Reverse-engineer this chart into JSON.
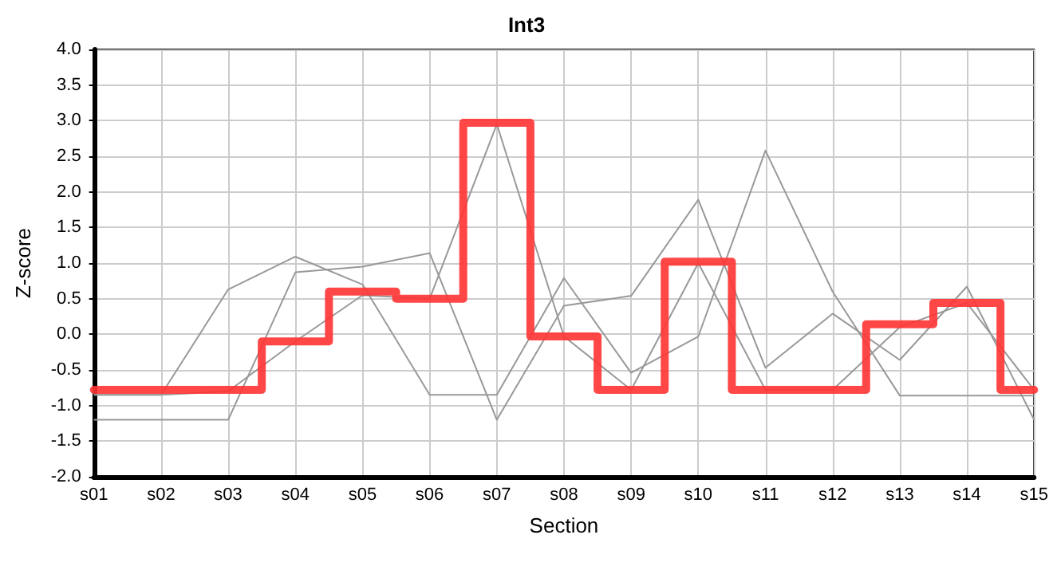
{
  "chart_data": {
    "type": "line",
    "title": "Int3",
    "xlabel": "Section",
    "ylabel": "Z-score",
    "categories": [
      "s01",
      "s02",
      "s03",
      "s04",
      "s05",
      "s06",
      "s07",
      "s08",
      "s09",
      "s10",
      "s11",
      "s12",
      "s13",
      "s14",
      "s15"
    ],
    "series": [
      {
        "color": "#999999",
        "values": [
          -1.2,
          -1.2,
          -1.2,
          0.87,
          0.95,
          1.14,
          -1.2,
          0.4,
          0.54,
          1.89,
          -0.47,
          0.29,
          -0.36,
          0.67,
          -1.2
        ]
      },
      {
        "color": "#999999",
        "values": [
          -0.85,
          -0.85,
          -0.8,
          -0.1,
          0.55,
          0.5,
          2.95,
          -0.03,
          -0.78,
          1.0,
          -0.78,
          -0.78,
          0.1,
          0.44,
          -0.78
        ]
      },
      {
        "color": "#999999",
        "values": [
          -0.85,
          -0.85,
          0.63,
          1.09,
          0.7,
          -0.85,
          -0.85,
          0.79,
          -0.54,
          -0.03,
          2.58,
          0.6,
          -0.86,
          -0.86,
          -0.86
        ]
      },
      {
        "type": "step",
        "color": "#ff3333",
        "values": [
          -0.78,
          -0.78,
          -0.78,
          -0.1,
          0.6,
          0.5,
          2.97,
          -0.03,
          -0.78,
          1.02,
          -0.78,
          -0.78,
          0.14,
          0.44,
          -0.78
        ]
      }
    ],
    "ylim": [
      -2.0,
      4.0
    ],
    "yticks": [
      {
        "value": -2,
        "label": "-2.0"
      },
      -1.5,
      {
        "value": -1,
        "label": "-1.0"
      },
      -0.5,
      {
        "value": 0,
        "label": "0.0"
      },
      0.5,
      {
        "value": 1,
        "label": "1.0"
      },
      1.5,
      {
        "value": 2,
        "label": "2.0"
      },
      2.5,
      {
        "value": 3,
        "label": "3.0"
      },
      3.5,
      {
        "value": 4,
        "label": "4.0"
      }
    ],
    "grid": true,
    "marker": "none",
    "line_style": "solid"
  }
}
